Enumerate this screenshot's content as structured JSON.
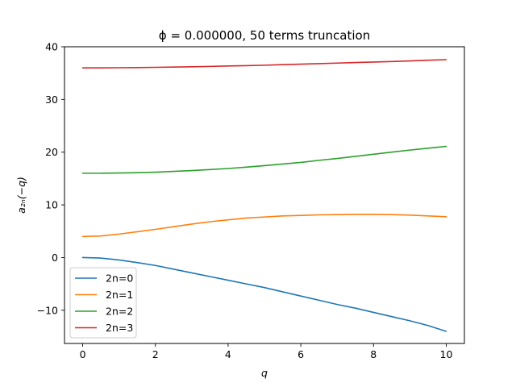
{
  "chart_data": {
    "type": "line",
    "title": "ϕ = 0.000000, 50 terms truncation",
    "xlabel": "q",
    "ylabel": "a₂ₙ(−q)",
    "xlim": [
      -0.5,
      10.5
    ],
    "ylim": [
      -16.3,
      40
    ],
    "x_ticks": [
      0,
      2,
      4,
      6,
      8,
      10
    ],
    "y_ticks": [
      -10,
      0,
      10,
      20,
      30,
      40
    ],
    "x_tick_labels": [
      "0",
      "2",
      "4",
      "6",
      "8",
      "10"
    ],
    "y_tick_labels": [
      "−10",
      "0",
      "10",
      "20",
      "30",
      "40"
    ],
    "grid": false,
    "legend_position": "lower-left",
    "x": [
      0,
      0.5,
      1,
      1.5,
      2,
      2.5,
      3,
      3.5,
      4,
      4.5,
      5,
      5.5,
      6,
      6.5,
      7,
      7.5,
      8,
      8.5,
      9,
      9.5,
      10
    ],
    "series": [
      {
        "name": "2n=0",
        "color": "#1f77b4",
        "values": [
          0.0,
          -0.1,
          -0.45,
          -0.95,
          -1.5,
          -2.2,
          -2.9,
          -3.6,
          -4.3,
          -5.0,
          -5.7,
          -6.5,
          -7.3,
          -8.1,
          -8.9,
          -9.6,
          -10.4,
          -11.2,
          -12.0,
          -12.9,
          -14.0
        ]
      },
      {
        "name": "2n=1",
        "color": "#ff7f0e",
        "values": [
          4.0,
          4.1,
          4.45,
          4.9,
          5.35,
          5.85,
          6.35,
          6.8,
          7.15,
          7.5,
          7.7,
          7.9,
          8.0,
          8.1,
          8.15,
          8.2,
          8.2,
          8.15,
          8.05,
          7.9,
          7.75
        ]
      },
      {
        "name": "2n=2",
        "color": "#2ca02c",
        "values": [
          16.0,
          16.0,
          16.05,
          16.1,
          16.2,
          16.35,
          16.5,
          16.7,
          16.9,
          17.15,
          17.45,
          17.75,
          18.05,
          18.45,
          18.8,
          19.2,
          19.6,
          20.0,
          20.4,
          20.75,
          21.1
        ]
      },
      {
        "name": "2n=3",
        "color": "#d62728",
        "values": [
          36.0,
          36.0,
          36.02,
          36.05,
          36.1,
          36.15,
          36.2,
          36.27,
          36.35,
          36.42,
          36.5,
          36.6,
          36.7,
          36.8,
          36.9,
          37.0,
          37.1,
          37.2,
          37.32,
          37.45,
          37.55
        ]
      }
    ]
  }
}
